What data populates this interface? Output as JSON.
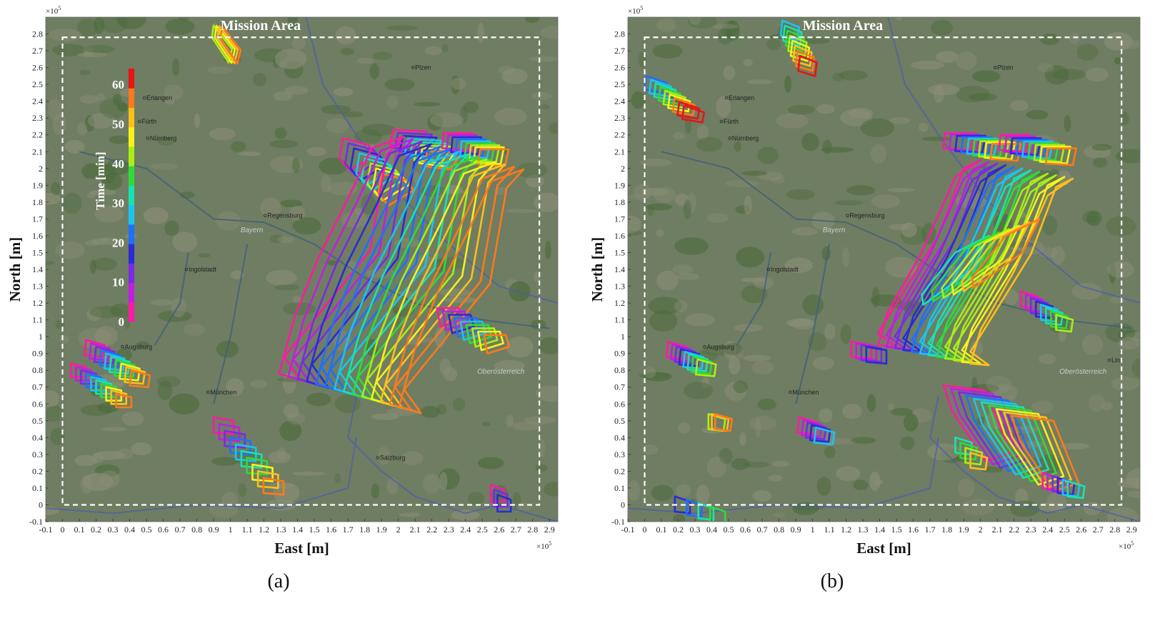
{
  "colors": {
    "map_base": "#6f7d62",
    "map_dark": "#4a6a3a",
    "river": "#3e5f7c",
    "border": "#4b5bb0",
    "box": "#ffffff",
    "time_scale": [
      "#ff1aa3",
      "#c21ee0",
      "#7a2ae6",
      "#2b2bd6",
      "#1f6fff",
      "#19c4f0",
      "#17e3b0",
      "#2edb3a",
      "#a9ee14",
      "#f6f21b",
      "#ffbf1a",
      "#ff7a1a",
      "#e81414"
    ]
  },
  "panels": [
    {
      "id": "a",
      "sub_label": "(a)",
      "title": "Mission Area",
      "xlabel": "East [m]",
      "ylabel": "North [m]",
      "x_exponent": "×10",
      "y_exponent": "×10",
      "exponent_power": "5",
      "x_ticks": [
        "-0.1",
        "0",
        "0.1",
        "0.2",
        "0.3",
        "0.4",
        "0.5",
        "0.6",
        "0.7",
        "0.8",
        "0.9",
        "1",
        "1.1",
        "1.2",
        "1.3",
        "1.4",
        "1.5",
        "1.6",
        "1.7",
        "1.8",
        "1.9",
        "2",
        "2.1",
        "2.2",
        "2.3",
        "2.4",
        "2.5",
        "2.6",
        "2.7",
        "2.8",
        "2.9"
      ],
      "y_ticks": [
        "-0.1",
        "0",
        "0.1",
        "0.2",
        "0.3",
        "0.4",
        "0.5",
        "0.6",
        "0.7",
        "0.8",
        "0.9",
        "1",
        "1.1",
        "1.2",
        "1.3",
        "1.4",
        "1.5",
        "1.6",
        "1.7",
        "1.8",
        "1.9",
        "2",
        "2.1",
        "2.2",
        "2.3",
        "2.4",
        "2.5",
        "2.6",
        "2.7",
        "2.8"
      ],
      "colorbar": {
        "label": "Time [min]",
        "ticks": [
          "0",
          "10",
          "20",
          "30",
          "40",
          "50",
          "60"
        ],
        "range": [
          0,
          64
        ]
      },
      "cities": [
        {
          "name": "Erlangen",
          "x": 0.5,
          "y": 2.42
        },
        {
          "name": "Fürth",
          "x": 0.47,
          "y": 2.28
        },
        {
          "name": "Nürnberg",
          "x": 0.52,
          "y": 2.18
        },
        {
          "name": "Plzen",
          "x": 2.1,
          "y": 2.6
        },
        {
          "name": "Regensburg",
          "x": 1.22,
          "y": 1.72
        },
        {
          "name": "Ingolstadt",
          "x": 0.75,
          "y": 1.4
        },
        {
          "name": "Augsburg",
          "x": 0.37,
          "y": 0.94
        },
        {
          "name": "München",
          "x": 0.88,
          "y": 0.67
        },
        {
          "name": "Salzburg",
          "x": 1.89,
          "y": 0.28
        }
      ],
      "regions": [
        {
          "name": "Bayern",
          "x": 1.06,
          "y": 1.62
        },
        {
          "name": "Oberösterreich",
          "x": 2.47,
          "y": 0.78
        }
      ],
      "storm_cells": [
        {
          "pts": [
            [
              -0.05,
              0.12
            ],
            [
              0.06,
              -0.02
            ],
            [
              0.04,
              -0.1
            ],
            [
              -0.06,
              0.05
            ]
          ],
          "start": [
            0.95,
            2.73
          ],
          "shift": [
            0.017,
            -0.002
          ],
          "n": 4,
          "t0": 44,
          "dt": 5
        },
        {
          "pts": [
            [
              -0.06,
              0.1
            ],
            [
              0.09,
              0.06
            ],
            [
              0.13,
              0.0
            ],
            [
              -0.02,
              -0.09
            ],
            [
              -0.08,
              -0.02
            ]
          ],
          "start": [
            1.73,
            2.08
          ],
          "shift": [
            0.033,
            -0.03
          ],
          "n": 8,
          "t0": 0,
          "dt": 8
        },
        {
          "pts": [
            [
              -0.05,
              0.06
            ],
            [
              0.15,
              0.05
            ],
            [
              0.09,
              -0.05
            ],
            [
              -0.07,
              -0.03
            ]
          ],
          "start": [
            2.02,
            2.17
          ],
          "shift": [
            0.029,
            -0.018
          ],
          "n": 8,
          "t0": 0,
          "dt": 8
        },
        {
          "pts": [
            [
              -0.05,
              0.05
            ],
            [
              0.12,
              0.05
            ],
            [
              0.1,
              -0.05
            ],
            [
              -0.06,
              -0.04
            ]
          ],
          "start": [
            2.32,
            2.16
          ],
          "shift": [
            0.027,
            -0.012
          ],
          "n": 9,
          "t0": 0,
          "dt": 7
        },
        {
          "pts": [
            [
              -0.06,
              0.02
            ],
            [
              0.45,
              0.65
            ],
            [
              0.55,
              1.22
            ],
            [
              0.65,
              1.33
            ],
            [
              0.46,
              1.26
            ],
            [
              0.32,
              0.96
            ],
            [
              0.14,
              0.6
            ],
            [
              0.0,
              0.25
            ],
            [
              -0.09,
              -0.08
            ],
            [
              0.04,
              -0.12
            ]
          ],
          "start": [
            1.38,
            0.86
          ],
          "shift": [
            0.055,
            -0.015
          ],
          "n": 14,
          "t0": 0,
          "dt": 4.7
        },
        {
          "pts": [
            [
              -0.06,
              0.05
            ],
            [
              0.07,
              0.05
            ],
            [
              0.09,
              -0.02
            ],
            [
              -0.04,
              -0.06
            ]
          ],
          "start": [
            2.29,
            1.12
          ],
          "shift": [
            0.035,
            -0.02
          ],
          "n": 9,
          "t0": 0,
          "dt": 7
        },
        {
          "pts": [
            [
              -0.04,
              0.05
            ],
            [
              0.07,
              0.02
            ],
            [
              0.06,
              -0.05
            ],
            [
              -0.05,
              -0.04
            ]
          ],
          "start": [
            0.18,
            0.93
          ],
          "shift": [
            0.03,
            -0.02
          ],
          "n": 10,
          "t0": 0,
          "dt": 6.5
        },
        {
          "pts": [
            [
              -0.04,
              0.04
            ],
            [
              0.05,
              0.02
            ],
            [
              0.05,
              -0.04
            ],
            [
              -0.04,
              -0.04
            ]
          ],
          "start": [
            0.09,
            0.8
          ],
          "shift": [
            0.03,
            -0.02
          ],
          "n": 10,
          "t0": 0,
          "dt": 6.5
        },
        {
          "pts": [
            [
              -0.05,
              0.05
            ],
            [
              0.07,
              0.03
            ],
            [
              0.07,
              -0.05
            ],
            [
              -0.05,
              -0.04
            ]
          ],
          "start": [
            0.95,
            0.47
          ],
          "shift": [
            0.033,
            -0.04
          ],
          "n": 10,
          "t0": 0,
          "dt": 6.5
        },
        {
          "pts": [
            [
              -0.03,
              0.05
            ],
            [
              0.05,
              0.02
            ],
            [
              0.05,
              -0.05
            ],
            [
              -0.03,
              -0.05
            ]
          ],
          "start": [
            2.58,
            0.07
          ],
          "shift": [
            0.02,
            -0.03
          ],
          "n": 3,
          "t0": 0,
          "dt": 8
        }
      ]
    },
    {
      "id": "b",
      "sub_label": "(b)",
      "title": "Mission Area",
      "xlabel": "East [m]",
      "ylabel": "North [m]",
      "x_exponent": "×10",
      "y_exponent": "×10",
      "exponent_power": "5",
      "x_ticks": [
        "-0.1",
        "0",
        "0.1",
        "0.2",
        "0.3",
        "0.4",
        "0.5",
        "0.6",
        "0.7",
        "0.8",
        "0.9",
        "1",
        "1.1",
        "1.2",
        "1.3",
        "1.4",
        "1.5",
        "1.6",
        "1.7",
        "1.8",
        "1.9",
        "2",
        "2.1",
        "2.2",
        "2.3",
        "2.4",
        "2.5",
        "2.6",
        "2.7",
        "2.8",
        "2.9"
      ],
      "y_ticks": [
        "-0.1",
        "0",
        "0.1",
        "0.2",
        "0.3",
        "0.4",
        "0.5",
        "0.6",
        "0.7",
        "0.8",
        "0.9",
        "1",
        "1.1",
        "1.2",
        "1.3",
        "1.4",
        "1.5",
        "1.6",
        "1.7",
        "1.8",
        "1.9",
        "2",
        "2.1",
        "2.2",
        "2.3",
        "2.4",
        "2.5",
        "2.6",
        "2.7",
        "2.8"
      ],
      "cities": [
        {
          "name": "Erlangen",
          "x": 0.5,
          "y": 2.42
        },
        {
          "name": "Fürth",
          "x": 0.47,
          "y": 2.28
        },
        {
          "name": "Nürnberg",
          "x": 0.52,
          "y": 2.18
        },
        {
          "name": "Plzen",
          "x": 2.1,
          "y": 2.6
        },
        {
          "name": "Regensburg",
          "x": 1.22,
          "y": 1.72
        },
        {
          "name": "Ingolstadt",
          "x": 0.75,
          "y": 1.4
        },
        {
          "name": "Augsburg",
          "x": 0.37,
          "y": 0.94
        },
        {
          "name": "München",
          "x": 0.88,
          "y": 0.67
        },
        {
          "name": "Linz",
          "x": 2.78,
          "y": 0.86
        }
      ],
      "regions": [
        {
          "name": "Bayern",
          "x": 1.06,
          "y": 1.62
        },
        {
          "name": "Oberösterreich",
          "x": 2.47,
          "y": 0.78
        }
      ],
      "storm_cells": [
        {
          "pts": [
            [
              -0.04,
              0.06
            ],
            [
              0.06,
              0.02
            ],
            [
              0.05,
              -0.06
            ],
            [
              -0.05,
              -0.03
            ]
          ],
          "start": [
            0.86,
            2.82
          ],
          "shift": [
            0.015,
            -0.03
          ],
          "n": 8,
          "t0": 28,
          "dt": 5
        },
        {
          "pts": [
            [
              -0.04,
              0.06
            ],
            [
              0.08,
              0.02
            ],
            [
              0.07,
              -0.04
            ],
            [
              -0.05,
              -0.02
            ]
          ],
          "start": [
            0.05,
            2.49
          ],
          "shift": [
            0.028,
            -0.022
          ],
          "n": 9,
          "t0": 20,
          "dt": 6
        },
        {
          "pts": [
            [
              -0.05,
              0.05
            ],
            [
              0.12,
              0.05
            ],
            [
              0.1,
              -0.05
            ],
            [
              -0.06,
              -0.04
            ]
          ],
          "start": [
            1.84,
            2.16
          ],
          "shift": [
            0.035,
            -0.008
          ],
          "n": 9,
          "t0": 0,
          "dt": 7
        },
        {
          "pts": [
            [
              -0.05,
              0.05
            ],
            [
              0.12,
              0.05
            ],
            [
              0.1,
              -0.05
            ],
            [
              -0.06,
              -0.04
            ]
          ],
          "start": [
            2.17,
            2.15
          ],
          "shift": [
            0.035,
            -0.01
          ],
          "n": 9,
          "t0": 0,
          "dt": 7
        },
        {
          "pts": [
            [
              -0.06,
              0.02
            ],
            [
              0.3,
              0.6
            ],
            [
              0.45,
              1.0
            ],
            [
              0.55,
              1.05
            ],
            [
              0.4,
              0.95
            ],
            [
              0.2,
              0.5
            ],
            [
              0.0,
              0.15
            ],
            [
              -0.06,
              -0.05
            ],
            [
              0.05,
              -0.06
            ]
          ],
          "start": [
            1.45,
            1.0
          ],
          "shift": [
            0.05,
            -0.01
          ],
          "n": 12,
          "t0": 0,
          "dt": 5
        },
        {
          "pts": [
            [
              -0.04,
              0.04
            ],
            [
              0.25,
              0.25
            ],
            [
              0.35,
              0.45
            ],
            [
              0.15,
              0.35
            ],
            [
              -0.05,
              0.1
            ]
          ],
          "start": [
            1.7,
            1.15
          ],
          "shift": [
            0.06,
            0.02
          ],
          "n": 6,
          "t0": 30,
          "dt": 6
        },
        {
          "pts": [
            [
              -0.05,
              0.05
            ],
            [
              0.2,
              0.02
            ],
            [
              0.35,
              -0.35
            ],
            [
              0.2,
              -0.4
            ],
            [
              0.0,
              -0.1
            ]
          ],
          "start": [
            1.83,
            0.66
          ],
          "shift": [
            0.045,
            -0.02
          ],
          "n": 10,
          "t0": 0,
          "dt": 6.5
        },
        {
          "pts": [
            [
              -0.04,
              0.05
            ],
            [
              0.07,
              0.02
            ],
            [
              0.06,
              -0.05
            ],
            [
              -0.05,
              -0.04
            ]
          ],
          "start": [
            0.18,
            0.92
          ],
          "shift": [
            0.025,
            -0.015
          ],
          "n": 8,
          "t0": 0,
          "dt": 6
        },
        {
          "pts": [
            [
              -0.04,
              0.05
            ],
            [
              0.07,
              0.02
            ],
            [
              0.06,
              -0.05
            ],
            [
              -0.05,
              -0.04
            ]
          ],
          "start": [
            0.96,
            0.47
          ],
          "shift": [
            0.025,
            -0.015
          ],
          "n": 5,
          "t0": 0,
          "dt": 6
        },
        {
          "pts": [
            [
              -0.05,
              0.05
            ],
            [
              0.07,
              0.03
            ],
            [
              0.07,
              -0.05
            ],
            [
              -0.05,
              -0.04
            ]
          ],
          "start": [
            1.28,
            0.92
          ],
          "shift": [
            0.03,
            -0.01
          ],
          "n": 4,
          "t0": 0,
          "dt": 6
        },
        {
          "pts": [
            [
              -0.04,
              0.05
            ],
            [
              0.06,
              0.02
            ],
            [
              0.05,
              -0.05
            ],
            [
              -0.04,
              -0.04
            ]
          ],
          "start": [
            2.28,
            1.22
          ],
          "shift": [
            0.03,
            -0.02
          ],
          "n": 8,
          "t0": 0,
          "dt": 6
        },
        {
          "pts": [
            [
              -0.04,
              0.05
            ],
            [
              0.06,
              0.02
            ],
            [
              0.05,
              -0.05
            ],
            [
              -0.04,
              -0.04
            ]
          ],
          "start": [
            2.41,
            0.14
          ],
          "shift": [
            0.03,
            -0.01
          ],
          "n": 6,
          "t0": 0,
          "dt": 6
        },
        {
          "pts": [
            [
              -0.04,
              0.05
            ],
            [
              0.06,
              0.02
            ],
            [
              0.05,
              -0.05
            ],
            [
              -0.04,
              -0.04
            ]
          ],
          "start": [
            1.89,
            0.35
          ],
          "shift": [
            0.03,
            -0.03
          ],
          "n": 4,
          "t0": 30,
          "dt": 7
        },
        {
          "pts": [
            [
              -0.04,
              0.05
            ],
            [
              0.06,
              0.02
            ],
            [
              0.05,
              -0.05
            ],
            [
              -0.04,
              -0.04
            ]
          ],
          "start": [
            0.42,
            0.49
          ],
          "shift": [
            0.02,
            0.0
          ],
          "n": 3,
          "t0": 45,
          "dt": 8
        },
        {
          "pts": [
            [
              -0.04,
              0.05
            ],
            [
              0.05,
              0.02
            ],
            [
              0.05,
              -0.05
            ],
            [
              -0.04,
              -0.04
            ]
          ],
          "start": [
            0.22,
            0.0
          ],
          "shift": [
            0.07,
            -0.02
          ],
          "n": 4,
          "t0": 15,
          "dt": 8
        }
      ]
    }
  ]
}
